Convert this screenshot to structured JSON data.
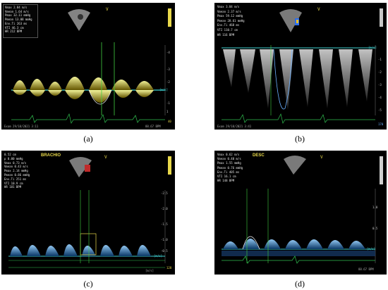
{
  "panels": [
    {
      "id": "a",
      "caption": "(a)",
      "label": "",
      "marker": "V",
      "accent": "#e8d84a",
      "measurements": [
        {
          "name": "Vmax",
          "value": "2.84 m/s"
        },
        {
          "name": "Vmean",
          "value": "1.64 m/s"
        },
        {
          "name": "Pmax",
          "value": "32.11 mmHg"
        },
        {
          "name": "Pmean",
          "value": "13.08 mmHg"
        },
        {
          "name": "Env.Ti",
          "value": "263 ms"
        },
        {
          "name": "VTI",
          "value": "46.3 cm"
        },
        {
          "name": "HR",
          "value": "212 BPM"
        }
      ],
      "scale_ticks": [
        "-4",
        "-3",
        "-2",
        "-1",
        "1",
        "2"
      ],
      "baseline_tag": "[m/s]",
      "footer": "Exam 29/10/2021 3:11",
      "footer_right": "88.67 BPM",
      "corner_value": "40"
    },
    {
      "id": "b",
      "caption": "(b)",
      "label": "",
      "marker": "V",
      "accent": "#9fb6d8",
      "measurements": [
        {
          "name": "Vmax",
          "value": "3.84 m/s"
        },
        {
          "name": "Vmean",
          "value": "2.37 m/s"
        },
        {
          "name": "Pmax",
          "value": "59.12 mmHg"
        },
        {
          "name": "Pmean",
          "value": "28.61 mmHg"
        },
        {
          "name": "Env.Ti",
          "value": "468 ms"
        },
        {
          "name": "VTI",
          "value": "110.7 cm"
        },
        {
          "name": "HR",
          "value": "116 BPM"
        }
      ],
      "scale_ticks": [
        "-1",
        "-2",
        "-3",
        "-4",
        "-5"
      ],
      "baseline_tag": "[m/s]",
      "footer": "Exam 29/10/2021 3:41",
      "footer_right": "170",
      "corner_value": ""
    },
    {
      "id": "c",
      "caption": "(c)",
      "label": "BRACHIO",
      "marker": "V",
      "accent": "#e8d84a",
      "measurements": [
        {
          "name": "",
          "value": "0.52 cm"
        },
        {
          "name": "p",
          "value": "0.00 mmHg"
        },
        {
          "name": "Vmax",
          "value": "0.73 m/s"
        },
        {
          "name": "Vmean",
          "value": "0.43 m/s"
        },
        {
          "name": "Pmax",
          "value": "2.14 mmHg"
        },
        {
          "name": "Pmean",
          "value": "0.86 mmHg"
        },
        {
          "name": "Env.Ti",
          "value": "251 ms"
        },
        {
          "name": "VTI",
          "value": "10.9 cm"
        },
        {
          "name": "HR",
          "value": "181 BPM"
        }
      ],
      "scale_ticks": [
        "-2.5",
        "-2.0",
        "-1.5",
        "-1.0",
        "-0.5"
      ],
      "baseline_tag": "[m/s]",
      "footer": "",
      "footer_right": "[m/s]",
      "corner_value": "128"
    },
    {
      "id": "d",
      "caption": "(d)",
      "label": "DESC",
      "marker": "V",
      "accent": "#e8d84a",
      "measurements": [
        {
          "name": "Vmax",
          "value": "0.62 m/s"
        },
        {
          "name": "Vmean",
          "value": "0.40 m/s"
        },
        {
          "name": "Pmax",
          "value": "1.55 mmHg"
        },
        {
          "name": "Pmean",
          "value": "0.76 mmHg"
        },
        {
          "name": "Env.Ti",
          "value": "405 ms"
        },
        {
          "name": "VTI",
          "value": "16.1 cm"
        },
        {
          "name": "HR",
          "value": "148 BPM"
        }
      ],
      "scale_ticks": [
        "1.0",
        "0.5"
      ],
      "baseline_tag": "[m/s]",
      "footer": "",
      "footer_right": "88.67 BPM",
      "corner_value": ""
    }
  ]
}
